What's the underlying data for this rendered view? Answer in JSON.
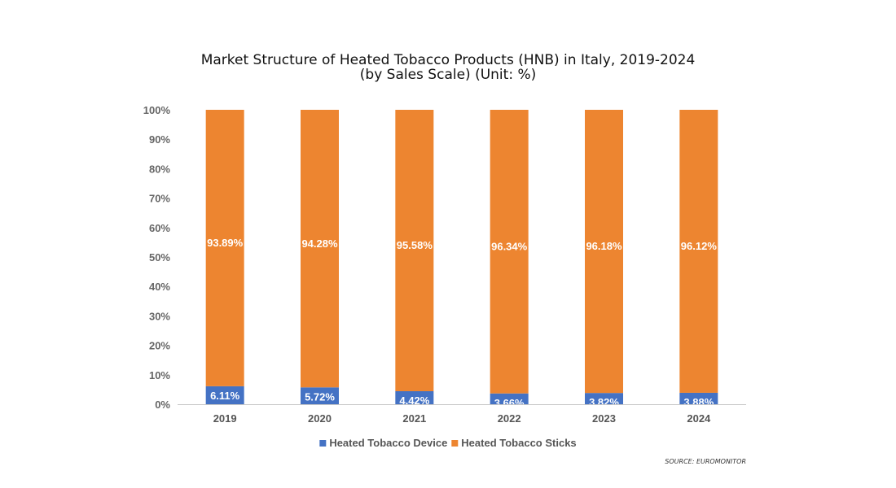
{
  "chart_data": {
    "type": "bar",
    "stacked": true,
    "title": "Market Structure of Heated Tobacco Products (HNB) in Italy, 2019-2024",
    "subtitle": "(by Sales Scale) (Unit: %)",
    "categories": [
      "2019",
      "2020",
      "2021",
      "2022",
      "2023",
      "2024"
    ],
    "series": [
      {
        "name": "Heated Tobacco Device",
        "color": "#4472C4",
        "values": [
          6.11,
          5.72,
          4.42,
          3.66,
          3.82,
          3.88
        ],
        "labels": [
          "6.11%",
          "5.72%",
          "4.42%",
          "3.66%",
          "3.82%",
          "3.88%"
        ]
      },
      {
        "name": "Heated Tobacco Sticks",
        "color": "#ED8530",
        "values": [
          93.89,
          94.28,
          95.58,
          96.34,
          96.18,
          96.12
        ],
        "labels": [
          "93.89%",
          "94.28%",
          "95.58%",
          "96.34%",
          "96.18%",
          "96.12%"
        ]
      }
    ],
    "yticks": [
      "0%",
      "10%",
      "20%",
      "30%",
      "40%",
      "50%",
      "60%",
      "70%",
      "80%",
      "90%",
      "100%"
    ],
    "ylim": [
      0,
      100
    ],
    "xlabel": "",
    "ylabel": "",
    "legend": "bottom",
    "source": "SOURCE: EUROMONITOR"
  }
}
